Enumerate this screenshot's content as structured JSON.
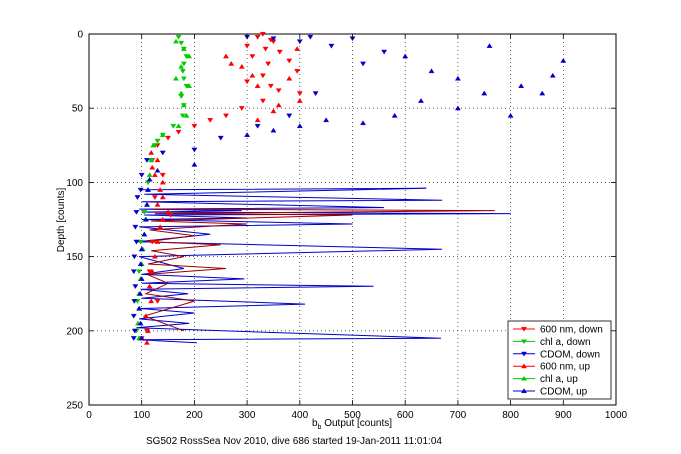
{
  "chart_data": {
    "type": "scatter",
    "title": "",
    "xlabel_main": "b",
    "xlabel_sub": "b",
    "xlabel_rest": " Output [counts]",
    "ylabel": "Depth [counts]",
    "caption": "SG502 RossSea Nov 2010, dive 686 started 19-Jan-2011 11:01:04",
    "xlim": [
      0,
      1000
    ],
    "ylim": [
      0,
      250
    ],
    "y_reversed": true,
    "xticks": [
      0,
      100,
      200,
      300,
      400,
      500,
      600,
      700,
      800,
      900,
      1000
    ],
    "yticks": [
      0,
      50,
      100,
      150,
      200,
      250
    ],
    "grid": true,
    "legend_position": "bottom-right",
    "series": [
      {
        "name": "600 nm, down",
        "color": "#ff0000",
        "marker": "down",
        "points": [
          [
            330,
            0
          ],
          [
            320,
            2
          ],
          [
            345,
            4
          ],
          [
            350,
            5
          ],
          [
            300,
            8
          ],
          [
            335,
            10
          ],
          [
            362,
            12
          ],
          [
            310,
            15
          ],
          [
            380,
            18
          ],
          [
            340,
            20
          ],
          [
            395,
            25
          ],
          [
            330,
            28
          ],
          [
            300,
            32
          ],
          [
            345,
            35
          ],
          [
            360,
            38
          ],
          [
            400,
            40
          ],
          [
            330,
            45
          ],
          [
            290,
            50
          ],
          [
            260,
            55
          ],
          [
            230,
            58
          ],
          [
            200,
            62
          ],
          [
            170,
            66
          ],
          [
            150,
            70
          ],
          [
            130,
            75
          ],
          [
            120,
            85
          ],
          [
            140,
            95
          ],
          [
            125,
            110
          ],
          [
            155,
            122
          ],
          [
            120,
            140
          ],
          [
            115,
            160
          ],
          [
            130,
            180
          ],
          [
            110,
            200
          ],
          [
            100,
            205
          ]
        ]
      },
      {
        "name": "chl a, down",
        "color": "#00cc00",
        "marker": "down",
        "points": [
          [
            170,
            2
          ],
          [
            175,
            6
          ],
          [
            180,
            10
          ],
          [
            185,
            15
          ],
          [
            180,
            20
          ],
          [
            178,
            25
          ],
          [
            180,
            30
          ],
          [
            185,
            35
          ],
          [
            175,
            42
          ],
          [
            180,
            48
          ],
          [
            178,
            55
          ],
          [
            160,
            62
          ],
          [
            140,
            68
          ],
          [
            130,
            72
          ],
          [
            125,
            75
          ],
          [
            118,
            85
          ],
          [
            112,
            100
          ],
          [
            105,
            120
          ],
          [
            98,
            140
          ],
          [
            95,
            160
          ],
          [
            92,
            180
          ],
          [
            90,
            200
          ]
        ]
      },
      {
        "name": "CDOM, down",
        "color": "#0000cc",
        "marker": "down",
        "points": [
          [
            300,
            2
          ],
          [
            350,
            3
          ],
          [
            400,
            5
          ],
          [
            420,
            2
          ],
          [
            460,
            8
          ],
          [
            500,
            3
          ],
          [
            560,
            12
          ],
          [
            520,
            20
          ],
          [
            430,
            40
          ],
          [
            380,
            55
          ],
          [
            320,
            62
          ],
          [
            250,
            70
          ],
          [
            200,
            78
          ],
          [
            140,
            80
          ],
          [
            110,
            85
          ],
          [
            100,
            95
          ],
          [
            98,
            105
          ],
          [
            92,
            110
          ],
          [
            90,
            120
          ],
          [
            88,
            130
          ],
          [
            90,
            140
          ],
          [
            86,
            150
          ],
          [
            85,
            160
          ],
          [
            88,
            170
          ],
          [
            86,
            180
          ],
          [
            85,
            190
          ],
          [
            87,
            200
          ],
          [
            85,
            205
          ]
        ]
      },
      {
        "name": "600 nm, up",
        "color": "#ff0000",
        "marker": "up",
        "points": [
          [
            110,
            208
          ],
          [
            112,
            200
          ],
          [
            108,
            190
          ],
          [
            118,
            180
          ],
          [
            115,
            170
          ],
          [
            120,
            160
          ],
          [
            125,
            150
          ],
          [
            130,
            140
          ],
          [
            135,
            130
          ],
          [
            140,
            125
          ],
          [
            150,
            120
          ],
          [
            130,
            115
          ],
          [
            140,
            110
          ],
          [
            135,
            105
          ],
          [
            140,
            100
          ],
          [
            125,
            95
          ],
          [
            120,
            90
          ],
          [
            130,
            85
          ],
          [
            118,
            80
          ],
          [
            260,
            15
          ],
          [
            290,
            22
          ],
          [
            380,
            30
          ],
          [
            400,
            45
          ],
          [
            350,
            52
          ],
          [
            320,
            58
          ],
          [
            270,
            20
          ],
          [
            320,
            35
          ],
          [
            360,
            48
          ],
          [
            310,
            28
          ],
          [
            395,
            10
          ]
        ]
      },
      {
        "name": "chl a, up",
        "color": "#00cc00",
        "marker": "up",
        "points": [
          [
            95,
            205
          ],
          [
            93,
            195
          ],
          [
            96,
            185
          ],
          [
            95,
            175
          ],
          [
            98,
            165
          ],
          [
            100,
            155
          ],
          [
            102,
            145
          ],
          [
            105,
            135
          ],
          [
            107,
            125
          ],
          [
            110,
            115
          ],
          [
            112,
            105
          ],
          [
            115,
            95
          ],
          [
            118,
            85
          ],
          [
            122,
            75
          ],
          [
            140,
            68
          ],
          [
            170,
            62
          ],
          [
            185,
            55
          ],
          [
            180,
            48
          ],
          [
            175,
            40
          ],
          [
            190,
            35
          ],
          [
            165,
            30
          ],
          [
            175,
            22
          ],
          [
            190,
            15
          ],
          [
            180,
            10
          ],
          [
            165,
            5
          ]
        ]
      },
      {
        "name": "CDOM, up",
        "color": "#0000cc",
        "marker": "up",
        "points": [
          [
            100,
            205
          ],
          [
            98,
            195
          ],
          [
            95,
            185
          ],
          [
            97,
            175
          ],
          [
            100,
            165
          ],
          [
            98,
            155
          ],
          [
            100,
            145
          ],
          [
            105,
            135
          ],
          [
            108,
            125
          ],
          [
            110,
            115
          ],
          [
            112,
            105
          ],
          [
            115,
            98
          ],
          [
            130,
            92
          ],
          [
            200,
            88
          ],
          [
            600,
            15
          ],
          [
            650,
            25
          ],
          [
            700,
            30
          ],
          [
            750,
            40
          ],
          [
            800,
            55
          ],
          [
            820,
            35
          ],
          [
            880,
            28
          ],
          [
            900,
            18
          ],
          [
            760,
            8
          ],
          [
            860,
            40
          ],
          [
            700,
            50
          ],
          [
            630,
            45
          ],
          [
            580,
            55
          ],
          [
            520,
            60
          ],
          [
            450,
            58
          ],
          [
            400,
            62
          ],
          [
            350,
            65
          ],
          [
            300,
            68
          ]
        ]
      }
    ],
    "profile_lines": [
      {
        "color": "#0000cc",
        "x": [
          100,
          640,
          105,
          670,
          100,
          560,
          95,
          290,
          100,
          800,
          105,
          300,
          100,
          500,
          95,
          230,
          92,
          670,
          95,
          180,
          100,
          295,
          100,
          540,
          98,
          188,
          100,
          410,
          98,
          200,
          95,
          190,
          90,
          668,
          92,
          205
        ],
        "y": [
          105,
          104,
          108,
          112,
          113,
          117,
          118,
          119,
          120,
          121,
          122,
          124,
          125,
          128,
          130,
          135,
          140,
          145,
          150,
          158,
          162,
          165,
          168,
          170,
          172,
          175,
          178,
          182,
          185,
          188,
          192,
          195,
          198,
          205,
          206,
          208
        ]
      },
      {
        "color": "#990000",
        "x": [
          120,
          770,
          125,
          500,
          118,
          300,
          115,
          200,
          110,
          250,
          118,
          180,
          112,
          260,
          110,
          150,
          108,
          200,
          105,
          180
        ],
        "y": [
          118,
          119,
          121,
          122,
          126,
          128,
          132,
          136,
          140,
          142,
          146,
          150,
          155,
          158,
          162,
          168,
          175,
          180,
          190,
          200
        ]
      }
    ]
  }
}
